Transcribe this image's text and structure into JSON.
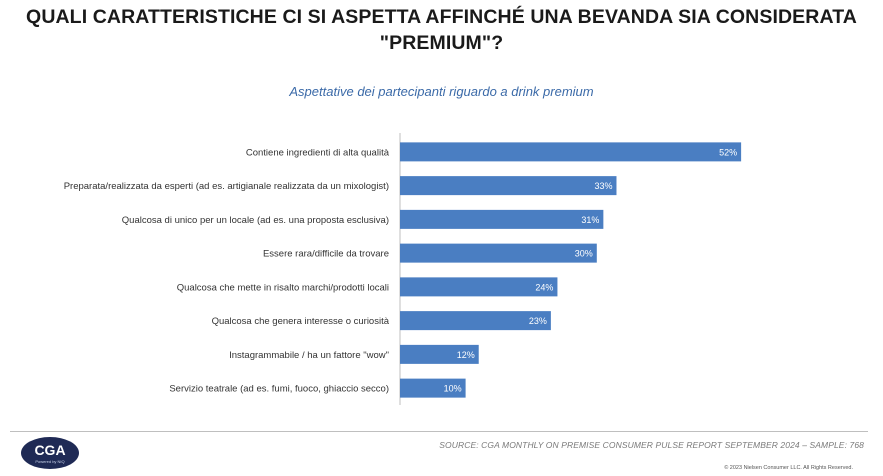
{
  "chart_data": {
    "type": "bar",
    "orientation": "horizontal",
    "title": "QUALI CARATTERISTICHE CI SI ASPETTA AFFINCHÉ UNA BEVANDA SIA CONSIDERATA \"PREMIUM\"?",
    "subtitle": "Aspettative dei partecipanti riguardo a drink premium",
    "categories": [
      "Contiene ingredienti di alta qualità",
      "Preparata/realizzata da esperti (ad es. artigianale realizzata da un mixologist)",
      "Qualcosa di unico per un locale (ad es. una proposta esclusiva)",
      "Essere rara/difficile da trovare",
      "Qualcosa che mette in risalto marchi/prodotti locali",
      "Qualcosa che genera interesse o curiosità",
      "Instagrammabile / ha un fattore \"wow\"",
      "Servizio teatrale (ad es. fumi, fuoco, ghiaccio secco)"
    ],
    "values": [
      52,
      33,
      31,
      30,
      24,
      23,
      12,
      10
    ],
    "value_labels": [
      "52%",
      "33%",
      "31%",
      "30%",
      "24%",
      "23%",
      "12%",
      "10%"
    ],
    "unit": "%",
    "xlim": [
      0,
      100
    ],
    "bar_color": "#4a7ec2",
    "label_color": "#ffffff",
    "grid": false,
    "legend": "none"
  },
  "footer": {
    "source": "SOURCE: CGA MONTHLY ON PREMISE CONSUMER PULSE REPORT SEPTEMBER 2024  – SAMPLE: 768",
    "copyright": "© 2023 Nielsen Consumer LLC. All Rights Reserved.",
    "logo_text": "CGA",
    "logo_subtext": "Powered by NIQ",
    "logo_color": "#1f2a55"
  }
}
